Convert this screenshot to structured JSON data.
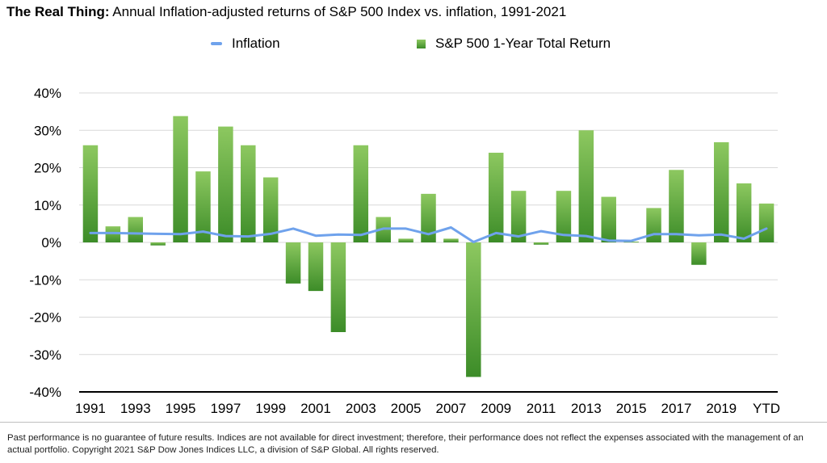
{
  "title": {
    "bold": "The Real Thing:",
    "rest": " Annual Inflation-adjusted returns of S&P 500 Index vs. inflation, 1991-2021"
  },
  "legend": {
    "inflation": "Inflation",
    "sp500": "S&P 500 1-Year Total Return"
  },
  "colors": {
    "inflation_line": "#6fa2ec",
    "bar_light": "#8dc860",
    "bar_dark": "#3c8c28",
    "grid": "#d9d9d9",
    "axis": "#000000"
  },
  "footnote": "Past performance is no guarantee of future results. Indices are not available for direct investment; therefore, their performance does not reflect the expenses associated with the management of an actual portfolio. Copyright 2021 S&P Dow Jones Indices LLC, a division of S&P Global. All rights reserved.",
  "chart_data": {
    "type": "bar",
    "categories": [
      "1991",
      "1992",
      "1993",
      "1994",
      "1995",
      "1996",
      "1997",
      "1998",
      "1999",
      "2000",
      "2001",
      "2002",
      "2003",
      "2004",
      "2005",
      "2006",
      "2007",
      "2008",
      "2009",
      "2010",
      "2011",
      "2012",
      "2013",
      "2014",
      "2015",
      "2016",
      "2017",
      "2018",
      "2019",
      "2020",
      "YTD"
    ],
    "x_tick_labels": [
      "1991",
      "",
      "1993",
      "",
      "1995",
      "",
      "1997",
      "",
      "1999",
      "",
      "2001",
      "",
      "2003",
      "",
      "2005",
      "",
      "2007",
      "",
      "2009",
      "",
      "2011",
      "",
      "2013",
      "",
      "2015",
      "",
      "2017",
      "",
      "2019",
      "",
      "YTD"
    ],
    "series": [
      {
        "name": "S&P 500 1-Year Total Return",
        "kind": "bar",
        "values": [
          26,
          4.3,
          6.8,
          -0.8,
          33.8,
          19,
          31,
          26,
          17.4,
          -11,
          -13,
          -24,
          26,
          6.8,
          1,
          13,
          1,
          -36,
          24,
          13.8,
          -0.6,
          13.8,
          30,
          12.2,
          0.2,
          9.2,
          19.4,
          -6,
          26.8,
          15.8,
          10.4
        ]
      },
      {
        "name": "Inflation",
        "kind": "line",
        "values": [
          2.5,
          2.5,
          2.4,
          2.3,
          2.2,
          2.9,
          1.7,
          1.6,
          2.3,
          3.7,
          1.8,
          2.1,
          2.0,
          3.7,
          3.7,
          2.2,
          4.0,
          0.1,
          2.5,
          1.6,
          3.0,
          2.0,
          1.7,
          0.5,
          0.4,
          2.2,
          2.2,
          1.9,
          2.1,
          1.0,
          3.7
        ]
      }
    ],
    "y_ticks": [
      "40%",
      "30%",
      "20%",
      "10%",
      "0%",
      "-10%",
      "-20%",
      "-30%",
      "-40%"
    ],
    "ylim": [
      -40,
      40
    ],
    "y_unit": "%",
    "grid": true,
    "legend_position": "top-center"
  }
}
